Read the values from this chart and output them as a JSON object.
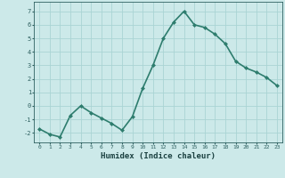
{
  "x": [
    0,
    1,
    2,
    3,
    4,
    5,
    6,
    7,
    8,
    9,
    10,
    11,
    12,
    13,
    14,
    15,
    16,
    17,
    18,
    19,
    20,
    21,
    22,
    23
  ],
  "y": [
    -1.7,
    -2.1,
    -2.3,
    -0.7,
    0.0,
    -0.5,
    -0.9,
    -1.3,
    -1.8,
    -0.8,
    1.3,
    3.0,
    5.0,
    6.2,
    7.0,
    6.0,
    5.8,
    5.3,
    4.6,
    3.3,
    2.8,
    2.5,
    2.1,
    1.5
  ],
  "line_color": "#2e7d6e",
  "marker": "D",
  "marker_size": 2.0,
  "xlabel": "Humidex (Indice chaleur)",
  "xlim": [
    -0.5,
    23.5
  ],
  "ylim": [
    -2.7,
    7.7
  ],
  "yticks": [
    -2,
    -1,
    0,
    1,
    2,
    3,
    4,
    5,
    6,
    7
  ],
  "xticks": [
    0,
    1,
    2,
    3,
    4,
    5,
    6,
    7,
    8,
    9,
    10,
    11,
    12,
    13,
    14,
    15,
    16,
    17,
    18,
    19,
    20,
    21,
    22,
    23
  ],
  "bg_color": "#cce9e9",
  "grid_color": "#aad4d4",
  "tick_color": "#2e6060",
  "label_color": "#1a4040",
  "line_width": 1.2
}
